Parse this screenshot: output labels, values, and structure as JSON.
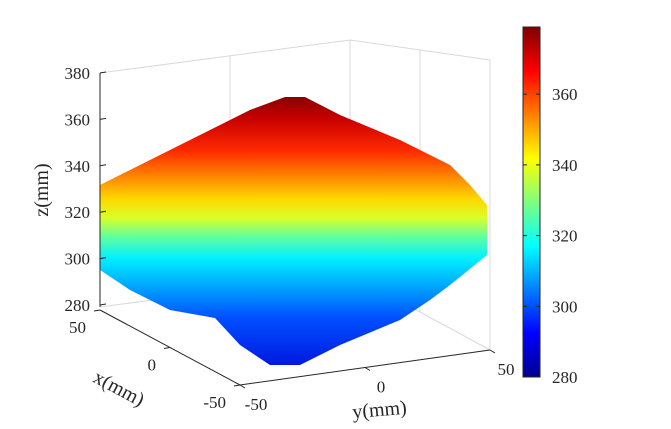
{
  "chart_data": {
    "type": "surface",
    "colormap": "jet",
    "xlabel": "x(mm)",
    "ylabel": "y(mm)",
    "zlabel": "z(mm)",
    "x_ticks": [
      "50",
      "0",
      "-50"
    ],
    "x_tick_values": [
      50,
      0,
      -50
    ],
    "y_ticks": [
      "-50",
      "0",
      "50"
    ],
    "y_tick_values": [
      -50,
      0,
      50
    ],
    "z_ticks": [
      "380",
      "360",
      "340",
      "320",
      "300",
      "280"
    ],
    "z_tick_values": [
      380,
      360,
      340,
      320,
      300,
      280
    ],
    "xlim": [
      -50,
      50
    ],
    "ylim": [
      -50,
      50
    ],
    "zlim": [
      280,
      380
    ],
    "grid": true,
    "colorbar": {
      "ticks": [
        "360",
        "340",
        "320",
        "300",
        "280"
      ],
      "tick_values": [
        360,
        340,
        320,
        300,
        280
      ],
      "clim": [
        280,
        379
      ],
      "placement": "right"
    },
    "surface_z_approx": {
      "x": [
        -50,
        0,
        50
      ],
      "y": [
        -50,
        0,
        50
      ],
      "z": [
        [
          285,
          330,
          285
        ],
        [
          330,
          376,
          330
        ],
        [
          285,
          330,
          285
        ]
      ]
    }
  }
}
